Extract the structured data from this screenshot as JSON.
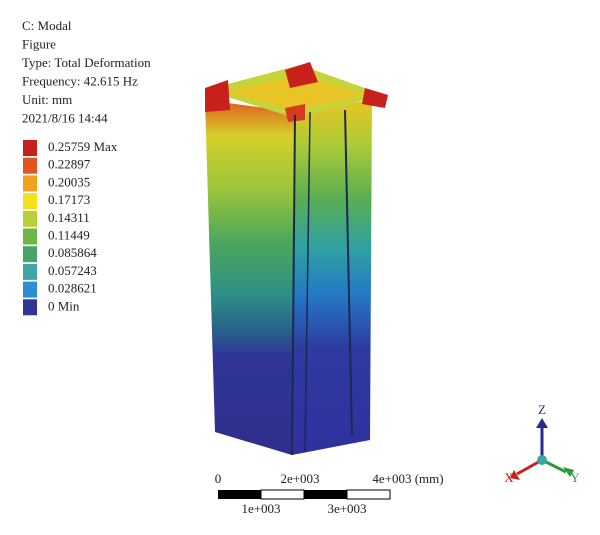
{
  "header": {
    "lines": [
      "C: Modal",
      "Figure",
      "Type: Total Deformation",
      "Frequency: 42.615 Hz",
      "Unit: mm",
      "2021/8/16 14:44"
    ]
  },
  "legend": {
    "items": [
      {
        "label": "0.25759 Max",
        "color": "#c8201b"
      },
      {
        "label": "0.22897",
        "color": "#e4541f"
      },
      {
        "label": "0.20035",
        "color": "#f0a21c"
      },
      {
        "label": "0.17173",
        "color": "#f4e11c"
      },
      {
        "label": "0.14311",
        "color": "#b6d036"
      },
      {
        "label": "0.11449",
        "color": "#6fb744"
      },
      {
        "label": "0.085864",
        "color": "#45a466"
      },
      {
        "label": "0.057243",
        "color": "#3ea7a4"
      },
      {
        "label": "0.028621",
        "color": "#2a90d6"
      },
      {
        "label": "0 Min",
        "color": "#2f3596"
      }
    ]
  },
  "scale_bar": {
    "top_labels": [
      "0",
      "2e+003",
      "4e+003 (mm)"
    ],
    "bottom_labels": [
      "1e+003",
      "3e+003"
    ]
  },
  "triad": {
    "z": "Z",
    "x": "X",
    "y": "Y"
  }
}
